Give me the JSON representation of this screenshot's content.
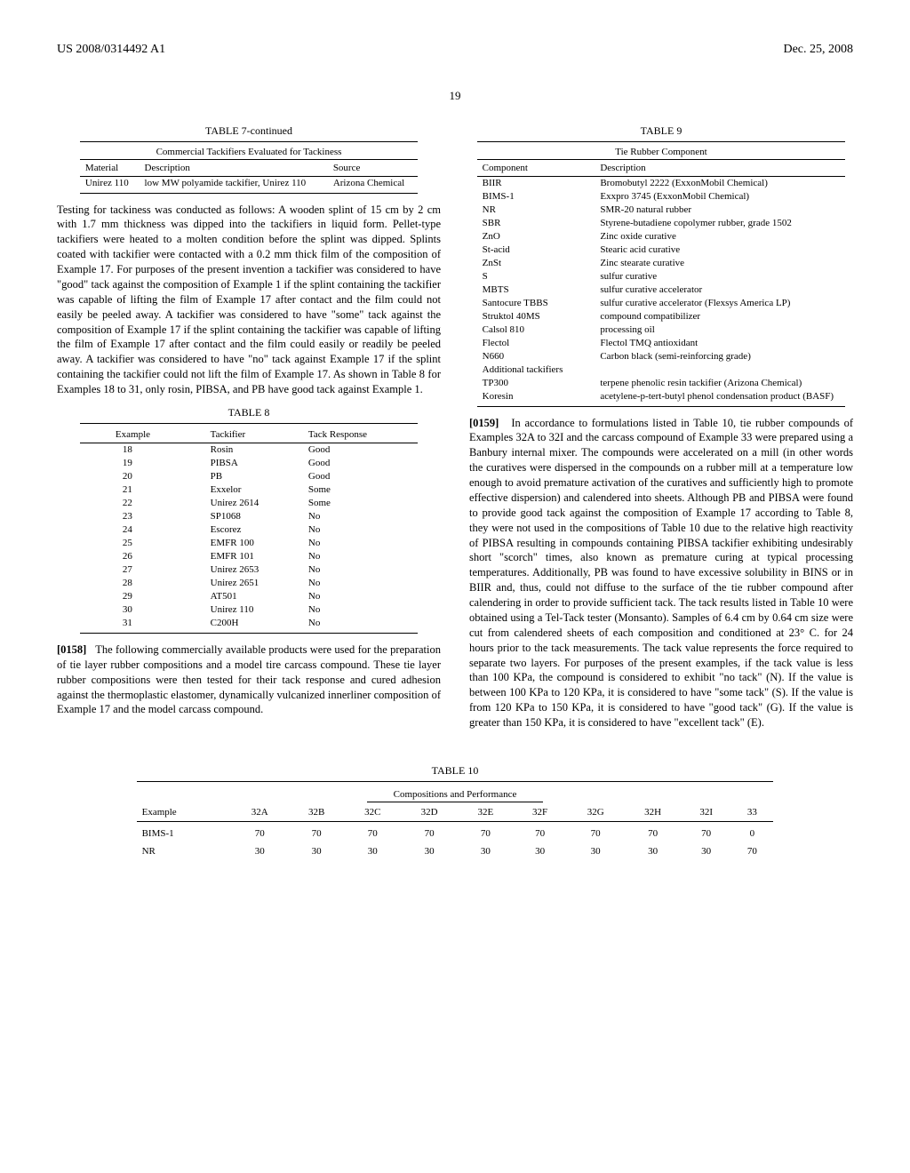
{
  "header": {
    "pub_no": "US 2008/0314492 A1",
    "date": "Dec. 25, 2008",
    "page": "19"
  },
  "table7": {
    "caption": "TABLE 7-continued",
    "subcaption": "Commercial Tackifiers Evaluated for Tackiness",
    "headers": [
      "Material",
      "Description",
      "Source"
    ],
    "rows": [
      [
        "Unirez 110",
        "low MW polyamide tackifier, Unirez 110",
        "Arizona Chemical"
      ]
    ]
  },
  "leftPara1": "Testing for tackiness was conducted as follows: A wooden splint of 15 cm by 2 cm with 1.7 mm thickness was dipped into the tackifiers in liquid form. Pellet-type tackifiers were heated to a molten condition before the splint was dipped. Splints coated with tackifier were contacted with a 0.2 mm thick film of the composition of Example 17. For purposes of the present invention a tackifier was considered to have \"good\" tack against the composition of Example 1 if the splint containing the tackifier was capable of lifting the film of Example 17 after contact and the film could not easily be peeled away. A tackifier was considered to have \"some\" tack against the composition of Example 17 if the splint containing the tackifier was capable of lifting the film of Example 17 after contact and the film could easily or readily be peeled away. A tackifier was considered to have \"no\" tack against Example 17 if the splint containing the tackifier could not lift the film of Example 17. As shown in Table 8 for Examples 18 to 31, only rosin, PIBSA, and PB have good tack against Example 1.",
  "table8": {
    "caption": "TABLE 8",
    "headers": [
      "Example",
      "Tackifier",
      "Tack Response"
    ],
    "rows": [
      [
        "18",
        "Rosin",
        "Good"
      ],
      [
        "19",
        "PIBSA",
        "Good"
      ],
      [
        "20",
        "PB",
        "Good"
      ],
      [
        "21",
        "Exxelor",
        "Some"
      ],
      [
        "22",
        "Unirez 2614",
        "Some"
      ],
      [
        "23",
        "SP1068",
        "No"
      ],
      [
        "24",
        "Escorez",
        "No"
      ],
      [
        "25",
        "EMFR 100",
        "No"
      ],
      [
        "26",
        "EMFR 101",
        "No"
      ],
      [
        "27",
        "Unirez 2653",
        "No"
      ],
      [
        "28",
        "Unirez 2651",
        "No"
      ],
      [
        "29",
        "AT501",
        "No"
      ],
      [
        "30",
        "Unirez 110",
        "No"
      ],
      [
        "31",
        "C200H",
        "No"
      ]
    ]
  },
  "para0158": {
    "num": "[0158]",
    "text": "The following commercially available products were used for the preparation of tie layer rubber compositions and a model tire carcass compound. These tie layer rubber compositions were then tested for their tack response and cured adhesion against the thermoplastic elastomer, dynamically vulcanized innerliner composition of Example 17 and the model carcass compound."
  },
  "table9": {
    "caption": "TABLE 9",
    "subcaption": "Tie Rubber Component",
    "headers": [
      "Component",
      "Description"
    ],
    "rows": [
      [
        "BIIR",
        "Bromobutyl 2222 (ExxonMobil Chemical)"
      ],
      [
        "BIMS-1",
        "Exxpro 3745 (ExxonMobil Chemical)"
      ],
      [
        "NR",
        "SMR-20 natural rubber"
      ],
      [
        "SBR",
        "Styrene-butadiene copolymer rubber, grade 1502"
      ],
      [
        "ZnO",
        "Zinc oxide curative"
      ],
      [
        "St-acid",
        "Stearic acid curative"
      ],
      [
        "ZnSt",
        "Zinc stearate curative"
      ],
      [
        "S",
        "sulfur curative"
      ],
      [
        "MBTS",
        "sulfur curative accelerator"
      ],
      [
        "Santocure TBBS",
        "sulfur curative accelerator (Flexsys America LP)"
      ],
      [
        "Struktol 40MS",
        "compound compatibilizer"
      ],
      [
        "Calsol 810",
        "processing oil"
      ],
      [
        "Flectol",
        "Flectol TMQ antioxidant"
      ],
      [
        "N660",
        "Carbon black (semi-reinforcing grade)"
      ],
      [
        "Additional tackifiers",
        ""
      ],
      [
        "TP300",
        "terpene phenolic resin tackifier (Arizona Chemical)"
      ],
      [
        "Koresin",
        "acetylene-p-tert-butyl phenol condensation product (BASF)"
      ]
    ]
  },
  "para0159": {
    "num": "[0159]",
    "text": "In accordance to formulations listed in Table 10, tie rubber compounds of Examples 32A to 32I and the carcass compound of Example 33 were prepared using a Banbury internal mixer. The compounds were accelerated on a mill (in other words the curatives were dispersed in the compounds on a rubber mill at a temperature low enough to avoid premature activation of the curatives and sufficiently high to promote effective dispersion) and calendered into sheets. Although PB and PIBSA were found to provide good tack against the composition of Example 17 according to Table 8, they were not used in the compositions of Table 10 due to the relative high reactivity of PIBSA resulting in compounds containing PIBSA tackifier exhibiting undesirably short \"scorch\" times, also known as premature curing at typical processing temperatures. Additionally, PB was found to have excessive solubility in BINS or in BIIR and, thus, could not diffuse to the surface of the tie rubber compound after calendering in order to provide sufficient tack. The tack results listed in Table 10 were obtained using a Tel-Tack tester (Monsanto). Samples of 6.4 cm by 0.64 cm size were cut from calendered sheets of each composition and conditioned at 23° C. for 24 hours prior to the tack measurements. The tack value represents the force required to separate two layers. For purposes of the present examples, if the tack value is less than 100 KPa, the compound is considered to exhibit \"no tack\" (N). If the value is between 100 KPa to 120 KPa, it is considered to have \"some tack\" (S). If the value is from 120 KPa to 150 KPa, it is considered to have \"good tack\" (G). If the value is greater than 150 KPa, it is considered to have \"excellent tack\" (E)."
  },
  "table10": {
    "caption": "TABLE 10",
    "subcaption": "Compositions and Performance",
    "col_headers": [
      "Example",
      "32A",
      "32B",
      "32C",
      "32D",
      "32E",
      "32F",
      "32G",
      "32H",
      "32I",
      "33"
    ],
    "rows": [
      [
        "BIMS-1",
        "70",
        "70",
        "70",
        "70",
        "70",
        "70",
        "70",
        "70",
        "70",
        "0"
      ],
      [
        "NR",
        "30",
        "30",
        "30",
        "30",
        "30",
        "30",
        "30",
        "30",
        "30",
        "70"
      ]
    ]
  }
}
